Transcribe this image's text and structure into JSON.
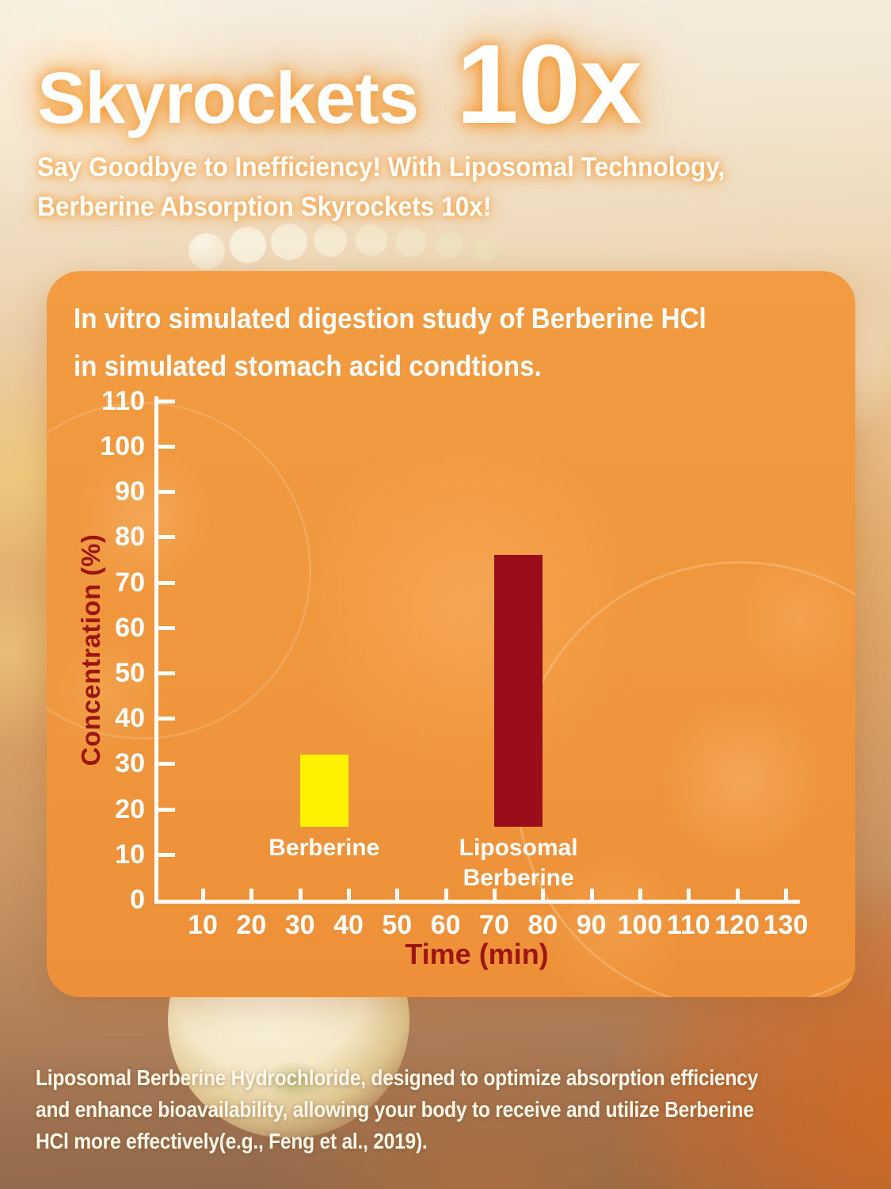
{
  "header": {
    "title_main": "Skyrockets",
    "title_highlight": "10x",
    "subtitle_lines": [
      "Say Goodbye to Inefficiency! With Liposomal Technology,",
      "Berberine Absorption Skyrockets 10x!"
    ]
  },
  "panel": {
    "title_lines": [
      "In vitro simulated digestion study of Berberine HCl",
      "in simulated stomach acid condtions."
    ]
  },
  "chart_data": {
    "type": "bar",
    "title": "In vitro simulated digestion study of Berberine HCl in simulated stomach acid condtions.",
    "categories": [
      "Berberine",
      "Liposomal Berberine"
    ],
    "values": [
      32,
      76
    ],
    "bar_base_value": 16,
    "bar_centers_x_min": [
      35,
      75
    ],
    "bar_width_min": 10,
    "bar_colors": [
      "#FFF200",
      "#9C0D1B"
    ],
    "xlabel": "Time (min)",
    "ylabel": "Concentration (%)",
    "xlim": [
      0,
      135
    ],
    "ylim": [
      0,
      110
    ],
    "yticks": [
      0,
      10,
      20,
      30,
      40,
      50,
      60,
      70,
      80,
      90,
      100,
      110
    ],
    "xticks": [
      10,
      20,
      30,
      40,
      50,
      60,
      70,
      80,
      90,
      100,
      110,
      120,
      130
    ],
    "grid": false,
    "legend": false,
    "axis_color": "#FFFFFF",
    "tick_label_color": "#FFFFFF",
    "axis_title_color": "#9C150F"
  },
  "footer": {
    "lines": [
      "Liposomal Berberine Hydrochloride, designed to optimize absorption efficiency",
      "and enhance bioavailability, allowing your body to receive and utilize Berberine",
      "HCl more effectively(e.g., Feng et al., 2019)."
    ]
  },
  "colors": {
    "panel_background": "#F0983E",
    "headline_text": "#FFFFFF",
    "headline_glow": "#F6941D",
    "bar_berberine": "#FFF200",
    "bar_liposomal": "#9C0D1B",
    "axis_text": "#FFFFFF",
    "axis_title_text": "#9C150F",
    "footer_text": "#FDF6EA",
    "background_bottom": "#8F684A"
  }
}
